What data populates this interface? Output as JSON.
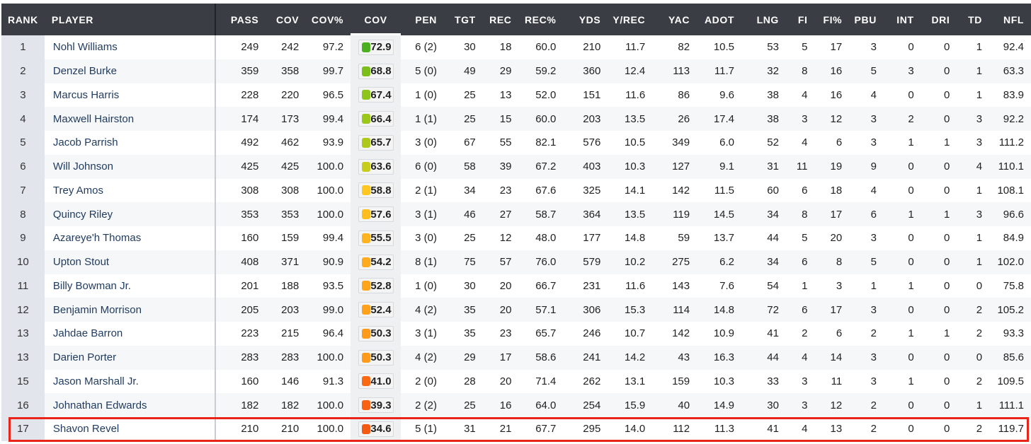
{
  "columns": [
    "RANK",
    "PLAYER",
    "PASS",
    "COV",
    "COV%",
    "COV",
    "PEN",
    "TGT",
    "REC",
    "REC%",
    "YDS",
    "Y/REC",
    "YAC",
    "ADOT",
    "LNG",
    "FI",
    "FI%",
    "PBU",
    "INT",
    "DRI",
    "TD",
    "NFL"
  ],
  "grade_colors": {
    "72.9": "#4caf1f",
    "68.8": "#7cbf1a",
    "67.4": "#8fc41a",
    "66.4": "#9bc71a",
    "65.7": "#aec91b",
    "63.6": "#c8cc1d",
    "58.8": "#ffc71f",
    "57.6": "#ffbd1f",
    "55.5": "#ffb31f",
    "54.2": "#ffab1d",
    "52.8": "#ffa51c",
    "52.4": "#ffa11b",
    "50.3": "#ff9a1a",
    "41.0": "#fa6a14",
    "39.3": "#f86214",
    "34.6": "#f55a12"
  },
  "highlight_color": "#e8241b",
  "rows": [
    [
      "1",
      "Nohl Williams",
      "249",
      "242",
      "97.2",
      "72.9",
      "6 (2)",
      "30",
      "18",
      "60.0",
      "210",
      "11.7",
      "82",
      "10.5",
      "53",
      "5",
      "17",
      "3",
      "0",
      "0",
      "1",
      "92.4"
    ],
    [
      "2",
      "Denzel Burke",
      "359",
      "358",
      "99.7",
      "68.8",
      "5 (0)",
      "49",
      "29",
      "59.2",
      "360",
      "12.4",
      "113",
      "11.7",
      "32",
      "8",
      "16",
      "5",
      "3",
      "0",
      "1",
      "63.3"
    ],
    [
      "3",
      "Marcus Harris",
      "228",
      "220",
      "96.5",
      "67.4",
      "1 (0)",
      "25",
      "13",
      "52.0",
      "151",
      "11.6",
      "86",
      "9.6",
      "38",
      "4",
      "16",
      "4",
      "0",
      "0",
      "1",
      "83.9"
    ],
    [
      "4",
      "Maxwell Hairston",
      "174",
      "173",
      "99.4",
      "66.4",
      "1 (1)",
      "25",
      "15",
      "60.0",
      "203",
      "13.5",
      "26",
      "17.4",
      "38",
      "3",
      "12",
      "3",
      "2",
      "0",
      "3",
      "92.2"
    ],
    [
      "5",
      "Jacob Parrish",
      "492",
      "462",
      "93.9",
      "65.7",
      "3 (0)",
      "67",
      "55",
      "82.1",
      "576",
      "10.5",
      "349",
      "6.0",
      "52",
      "4",
      "6",
      "3",
      "1",
      "1",
      "3",
      "111.2"
    ],
    [
      "6",
      "Will Johnson",
      "425",
      "425",
      "100.0",
      "63.6",
      "6 (0)",
      "58",
      "39",
      "67.2",
      "403",
      "10.3",
      "127",
      "9.1",
      "31",
      "11",
      "19",
      "9",
      "0",
      "0",
      "4",
      "110.1"
    ],
    [
      "7",
      "Trey Amos",
      "308",
      "308",
      "100.0",
      "58.8",
      "2 (1)",
      "34",
      "23",
      "67.6",
      "325",
      "14.1",
      "142",
      "11.5",
      "60",
      "6",
      "18",
      "4",
      "0",
      "0",
      "1",
      "108.1"
    ],
    [
      "8",
      "Quincy Riley",
      "353",
      "353",
      "100.0",
      "57.6",
      "3 (1)",
      "46",
      "27",
      "58.7",
      "364",
      "13.5",
      "119",
      "14.5",
      "34",
      "8",
      "17",
      "6",
      "1",
      "1",
      "3",
      "96.6"
    ],
    [
      "9",
      "Azareye'h Thomas",
      "160",
      "159",
      "99.4",
      "55.5",
      "3 (0)",
      "25",
      "12",
      "48.0",
      "177",
      "14.8",
      "59",
      "13.7",
      "44",
      "5",
      "20",
      "3",
      "0",
      "0",
      "1",
      "84.9"
    ],
    [
      "10",
      "Upton Stout",
      "408",
      "371",
      "90.9",
      "54.2",
      "8 (1)",
      "75",
      "57",
      "76.0",
      "579",
      "10.2",
      "275",
      "6.2",
      "34",
      "6",
      "8",
      "5",
      "0",
      "0",
      "1",
      "102.0"
    ],
    [
      "11",
      "Billy Bowman Jr.",
      "201",
      "188",
      "93.5",
      "52.8",
      "1 (0)",
      "30",
      "20",
      "66.7",
      "231",
      "11.6",
      "143",
      "7.6",
      "54",
      "1",
      "3",
      "1",
      "1",
      "0",
      "0",
      "75.8"
    ],
    [
      "12",
      "Benjamin Morrison",
      "205",
      "203",
      "99.0",
      "52.4",
      "4 (2)",
      "35",
      "20",
      "57.1",
      "306",
      "15.3",
      "114",
      "14.8",
      "72",
      "6",
      "17",
      "3",
      "0",
      "0",
      "2",
      "105.2"
    ],
    [
      "13",
      "Jahdae Barron",
      "223",
      "215",
      "96.4",
      "50.3",
      "3 (1)",
      "35",
      "23",
      "65.7",
      "246",
      "10.7",
      "142",
      "10.9",
      "41",
      "2",
      "6",
      "2",
      "1",
      "1",
      "2",
      "93.3"
    ],
    [
      "13",
      "Darien Porter",
      "283",
      "283",
      "100.0",
      "50.3",
      "4 (2)",
      "29",
      "17",
      "58.6",
      "241",
      "14.2",
      "43",
      "16.3",
      "44",
      "4",
      "14",
      "3",
      "0",
      "0",
      "0",
      "85.6"
    ],
    [
      "15",
      "Jason Marshall Jr.",
      "160",
      "146",
      "91.3",
      "41.0",
      "2 (0)",
      "28",
      "20",
      "71.4",
      "262",
      "13.1",
      "159",
      "10.3",
      "33",
      "3",
      "11",
      "3",
      "1",
      "0",
      "2",
      "109.5"
    ],
    [
      "16",
      "Johnathan Edwards",
      "182",
      "182",
      "100.0",
      "39.3",
      "2 (2)",
      "25",
      "16",
      "64.0",
      "254",
      "15.9",
      "40",
      "14.9",
      "30",
      "3",
      "12",
      "2",
      "0",
      "0",
      "1",
      "111.1"
    ],
    [
      "17",
      "Shavon Revel",
      "210",
      "210",
      "100.0",
      "34.6",
      "5 (1)",
      "31",
      "21",
      "67.7",
      "295",
      "14.0",
      "112",
      "11.3",
      "41",
      "4",
      "13",
      "2",
      "0",
      "0",
      "2",
      "119.7"
    ]
  ]
}
